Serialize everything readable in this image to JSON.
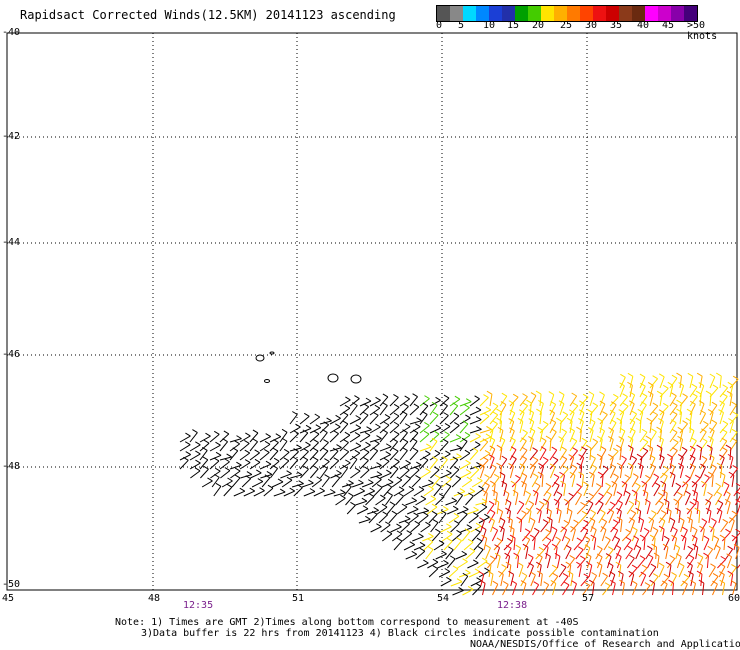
{
  "title": "Rapidsact Corrected Winds(12.5KM) 20141123 ascending",
  "colorbar": {
    "colors": [
      "#555555",
      "#888888",
      "#00d8ff",
      "#0088ff",
      "#1b3fd6",
      "#2230aa",
      "#00a000",
      "#44cc00",
      "#ffe400",
      "#ffb000",
      "#ff7a00",
      "#ff4400",
      "#ee1111",
      "#cc0000",
      "#8b3a1a",
      "#6a2a10",
      "#ff00ff",
      "#cc00cc",
      "#8800aa",
      "#44007a"
    ],
    "labels": [
      "0",
      "5",
      "10",
      "15",
      "20",
      "25",
      "30",
      "35",
      "40",
      "45",
      ">50 knots"
    ]
  },
  "lat_labels": [
    "-40",
    "-42",
    "-44",
    "-46",
    "-48",
    "-50"
  ],
  "lon_labels": [
    "45",
    "48",
    "51",
    "54",
    "57",
    "60"
  ],
  "times": [
    "12:35",
    "12:38"
  ],
  "notes": [
    "Note: 1) Times are GMT 2)Times along bottom correspond to measurement at -40S",
    "3)Data buffer is 22 hrs from 20141123 4) Black circles indicate possible contamination",
    "NOAA/NESDIS/Office of Research and Applications"
  ]
}
